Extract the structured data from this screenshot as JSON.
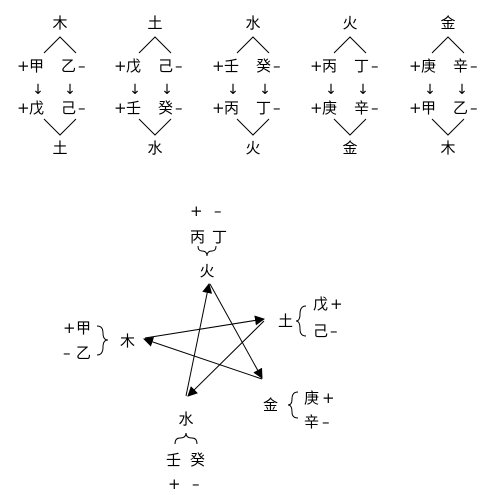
{
  "generation_table": {
    "columns": [
      {
        "element": "木",
        "yang_stem": "甲",
        "yin_stem": "乙",
        "yang_result": "戊",
        "yin_result": "己",
        "result_element": "土"
      },
      {
        "element": "土",
        "yang_stem": "戊",
        "yin_stem": "己",
        "yang_result": "壬",
        "yin_result": "癸",
        "result_element": "水"
      },
      {
        "element": "水",
        "yang_stem": "壬",
        "yin_stem": "癸",
        "yang_result": "丙",
        "yin_result": "丁",
        "result_element": "火"
      },
      {
        "element": "火",
        "yang_stem": "丙",
        "yin_stem": "丁",
        "yang_result": "庚",
        "yin_result": "辛",
        "result_element": "金"
      },
      {
        "element": "金",
        "yang_stem": "庚",
        "yin_stem": "辛",
        "yang_result": "甲",
        "yin_result": "乙",
        "result_element": "木"
      }
    ],
    "plus_sign": "+",
    "minus_sign": "–",
    "arrow": "↓"
  },
  "pentagram": {
    "signs": {
      "plus": "+",
      "minus": "–"
    },
    "fire": {
      "label": "火",
      "yang": "丙",
      "yin": "丁"
    },
    "earth": {
      "label": "土",
      "yang": "戊",
      "yin": "己"
    },
    "metal": {
      "label": "金",
      "yang": "庚",
      "yin": "辛"
    },
    "water": {
      "label": "水",
      "yang": "壬",
      "yin": "癸"
    },
    "wood": {
      "label": "木",
      "yang": "甲",
      "yin": "乙"
    }
  }
}
